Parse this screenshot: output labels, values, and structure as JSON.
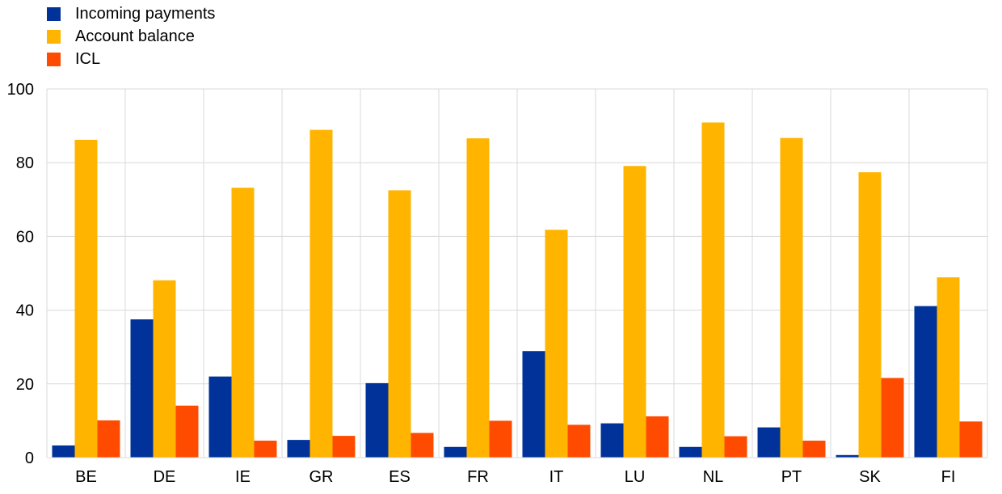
{
  "chart_data": {
    "type": "bar",
    "categories": [
      "BE",
      "DE",
      "IE",
      "GR",
      "ES",
      "FR",
      "IT",
      "LU",
      "NL",
      "PT",
      "SK",
      "FI"
    ],
    "series": [
      {
        "name": "Incoming payments",
        "color": "#003299",
        "values": [
          3.3,
          37.5,
          22.0,
          4.8,
          20.2,
          2.9,
          28.9,
          9.3,
          2.9,
          8.2,
          0.7,
          41.1
        ]
      },
      {
        "name": "Account balance",
        "color": "#FFB400",
        "values": [
          86.2,
          48.1,
          73.2,
          88.9,
          72.5,
          86.6,
          61.8,
          79.1,
          90.9,
          86.7,
          77.4,
          48.9
        ]
      },
      {
        "name": "ICL",
        "color": "#FF4B00",
        "values": [
          10.1,
          14.1,
          4.6,
          5.9,
          6.7,
          10.0,
          8.9,
          11.2,
          5.8,
          4.6,
          21.6,
          9.8
        ]
      }
    ],
    "ylim": [
      0,
      100
    ],
    "yticks": [
      0,
      20,
      40,
      60,
      80,
      100
    ],
    "xlabel": "",
    "ylabel": "",
    "grid": true,
    "legend_position": "top-left"
  }
}
